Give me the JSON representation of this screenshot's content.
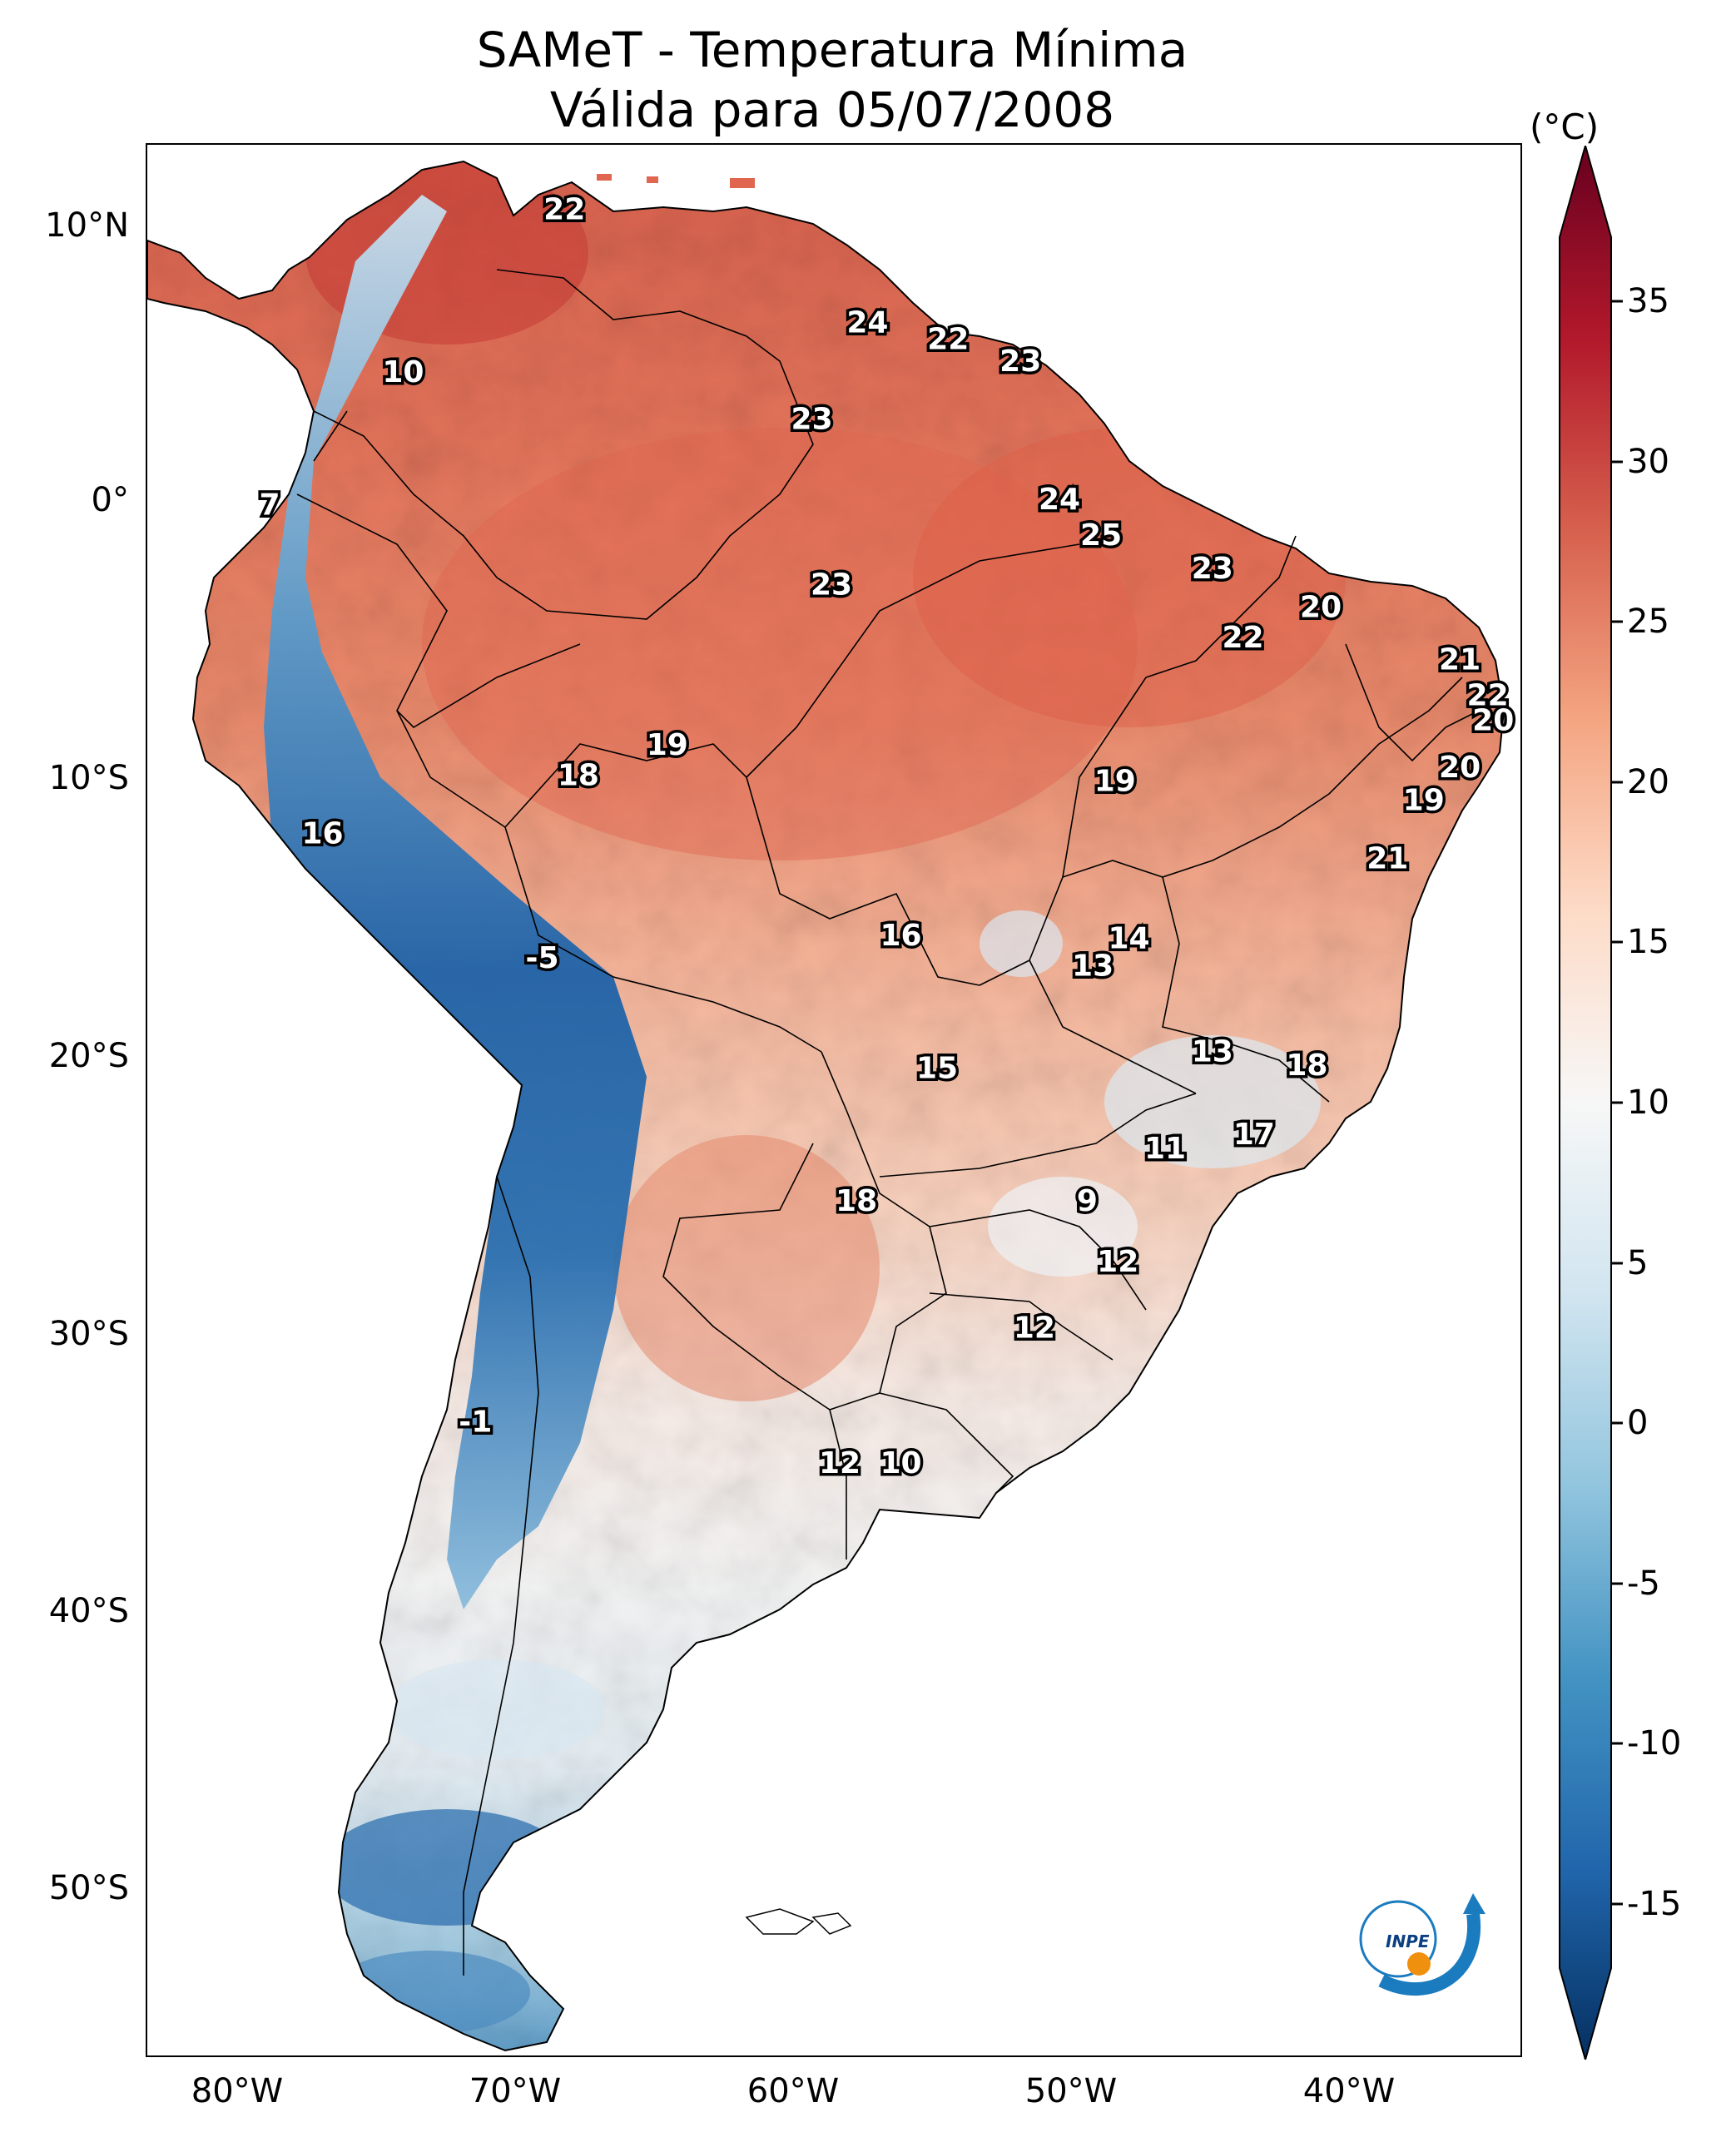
{
  "title": {
    "line1": "SAMeT - Temperatura Mínima",
    "line2": "Válida para 05/07/2008"
  },
  "axes": {
    "lat_ticks": [
      "10°N",
      "0°",
      "10°S",
      "20°S",
      "30°S",
      "40°S",
      "50°S"
    ],
    "lon_ticks": [
      "80°W",
      "70°W",
      "60°W",
      "50°W",
      "40°W"
    ]
  },
  "colorbar": {
    "unit": "(°C)",
    "min": -17,
    "max": 37,
    "ticks": [
      "35",
      "30",
      "25",
      "20",
      "15",
      "10",
      "5",
      "0",
      "-5",
      "-10",
      "-15"
    ],
    "colors": [
      "#053061",
      "#2166ac",
      "#4393c3",
      "#92c5de",
      "#d1e5f0",
      "#f7f7f7",
      "#fddbc7",
      "#f4a582",
      "#d6604d",
      "#b2182b",
      "#67001f"
    ]
  },
  "logo": {
    "text": "INPE"
  },
  "map_data": {
    "extent": {
      "lon_min": -82.8,
      "lon_max": -33.3,
      "lat_min": -56.5,
      "lat_max": 12.8
    },
    "annotations": [
      {
        "lon": -67.8,
        "lat": 10.5,
        "value": "22"
      },
      {
        "lon": -56.9,
        "lat": 6.4,
        "value": "24"
      },
      {
        "lon": -54.0,
        "lat": 5.8,
        "value": "22"
      },
      {
        "lon": -51.4,
        "lat": 5.0,
        "value": "23"
      },
      {
        "lon": -73.6,
        "lat": 4.6,
        "value": "10"
      },
      {
        "lon": -58.9,
        "lat": 2.9,
        "value": "23"
      },
      {
        "lon": -78.4,
        "lat": -0.2,
        "value": "7"
      },
      {
        "lon": -50.0,
        "lat": 0.0,
        "value": "24"
      },
      {
        "lon": -48.5,
        "lat": -1.3,
        "value": "25"
      },
      {
        "lon": -58.2,
        "lat": -3.1,
        "value": "23"
      },
      {
        "lon": -44.5,
        "lat": -2.5,
        "value": "23"
      },
      {
        "lon": -40.6,
        "lat": -3.9,
        "value": "20"
      },
      {
        "lon": -43.4,
        "lat": -5.0,
        "value": "22"
      },
      {
        "lon": -35.6,
        "lat": -5.8,
        "value": "21"
      },
      {
        "lon": -34.6,
        "lat": -7.1,
        "value": "22"
      },
      {
        "lon": -34.4,
        "lat": -8.0,
        "value": "20"
      },
      {
        "lon": -64.1,
        "lat": -8.9,
        "value": "19"
      },
      {
        "lon": -67.3,
        "lat": -10.0,
        "value": "18"
      },
      {
        "lon": -35.6,
        "lat": -9.7,
        "value": "20"
      },
      {
        "lon": -48.0,
        "lat": -10.2,
        "value": "19"
      },
      {
        "lon": -36.9,
        "lat": -10.9,
        "value": "19"
      },
      {
        "lon": -76.5,
        "lat": -12.1,
        "value": "16"
      },
      {
        "lon": -38.2,
        "lat": -13.0,
        "value": "21"
      },
      {
        "lon": -55.7,
        "lat": -15.8,
        "value": "16"
      },
      {
        "lon": -47.5,
        "lat": -15.9,
        "value": "14"
      },
      {
        "lon": -48.8,
        "lat": -16.9,
        "value": "13"
      },
      {
        "lon": -68.6,
        "lat": -16.6,
        "value": "-5"
      },
      {
        "lon": -44.5,
        "lat": -20.0,
        "value": "13"
      },
      {
        "lon": -41.1,
        "lat": -20.5,
        "value": "18"
      },
      {
        "lon": -54.4,
        "lat": -20.6,
        "value": "15"
      },
      {
        "lon": -43.0,
        "lat": -23.0,
        "value": "17"
      },
      {
        "lon": -46.2,
        "lat": -23.5,
        "value": "11"
      },
      {
        "lon": -57.3,
        "lat": -25.4,
        "value": "18"
      },
      {
        "lon": -49.0,
        "lat": -25.4,
        "value": "9"
      },
      {
        "lon": -47.9,
        "lat": -27.6,
        "value": "12"
      },
      {
        "lon": -50.9,
        "lat": -30.0,
        "value": "12"
      },
      {
        "lon": -71.0,
        "lat": -33.4,
        "value": "-1"
      },
      {
        "lon": -57.9,
        "lat": -34.9,
        "value": "12"
      },
      {
        "lon": -55.7,
        "lat": -34.9,
        "value": "10"
      }
    ]
  }
}
